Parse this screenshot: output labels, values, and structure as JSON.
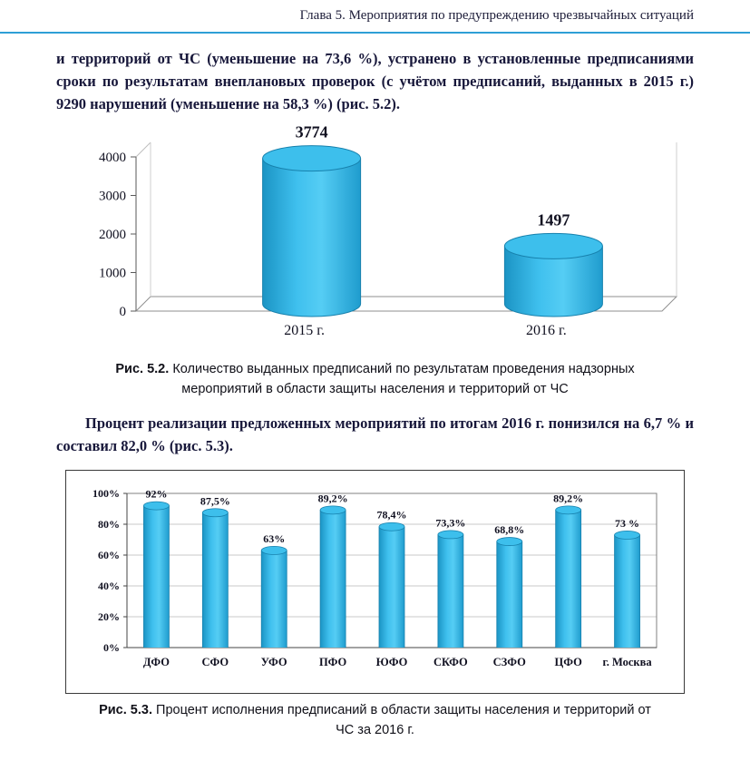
{
  "header": {
    "chapter_title": "Глава 5. Мероприятия по предупреждению чрезвычайных ситуаций"
  },
  "paragraphs": {
    "p1": "и территорий от ЧС (уменьшение на 73,6 %), устранено в установленные предписаниями сроки по результатам внеплановых проверок (с учётом предписаний, выданных в 2015 г.) 9290 нарушений (уменьшение на 58,3 %) (рис. 5.2).",
    "p2": "Процент реализации предложенных мероприятий по итогам 2016 г. понизился на 6,7 % и составил 82,0 % (рис. 5.3)."
  },
  "figure52": {
    "label": "Рис. 5.2.",
    "caption": "Количество выданных предписаний по результатам проведения надзорных мероприятий в области защиты населения и территорий от ЧС"
  },
  "figure53": {
    "label": "Рис. 5.3.",
    "caption": "Процент исполнения предписаний в области защиты населения и территорий от ЧС за 2016 г."
  },
  "colors": {
    "header_rule": "#2E9FD6",
    "bar_fill": "#2CB3E8",
    "bar_edge": "#1781AD"
  },
  "chart_data": [
    {
      "type": "bar",
      "variant": "3d-cylinder",
      "title": "",
      "categories": [
        "2015 г.",
        "2016 г."
      ],
      "values": [
        3774,
        1497
      ],
      "value_labels": [
        "3774",
        "1497"
      ],
      "ylim": [
        0,
        4000
      ],
      "yticks": [
        0,
        1000,
        2000,
        3000,
        4000
      ],
      "ytick_labels": [
        "0",
        "1000",
        "2000",
        "3000",
        "4000"
      ],
      "grid": false,
      "legend": "none"
    },
    {
      "type": "bar",
      "variant": "cylinder",
      "title": "",
      "categories": [
        "ДФО",
        "СФО",
        "УФО",
        "ПФО",
        "ЮФО",
        "СКФО",
        "СЗФО",
        "ЦФО",
        "г. Москва"
      ],
      "values": [
        92,
        87.5,
        63,
        89.2,
        78.4,
        73.3,
        68.8,
        89.2,
        73
      ],
      "value_labels": [
        "92%",
        "87,5%",
        "63%",
        "89,2%",
        "78,4%",
        "73,3%",
        "68,8%",
        "89,2%",
        "73 %"
      ],
      "ylim": [
        0,
        100
      ],
      "yticks": [
        0,
        20,
        40,
        60,
        80,
        100
      ],
      "ytick_labels": [
        "0%",
        "20%",
        "40%",
        "60%",
        "80%",
        "100%"
      ],
      "grid": true,
      "legend": "none"
    }
  ]
}
